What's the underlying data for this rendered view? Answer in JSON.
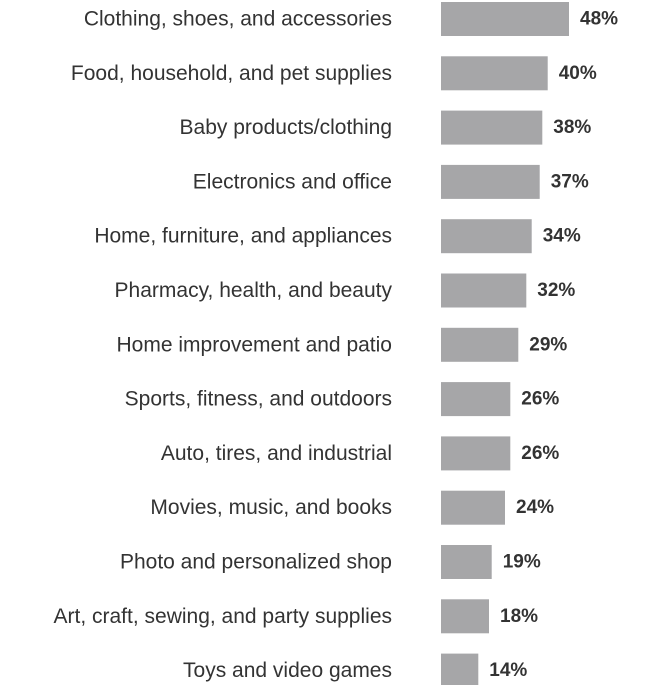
{
  "chart_data": {
    "type": "bar",
    "orientation": "horizontal",
    "title": "",
    "xlabel": "",
    "ylabel": "",
    "bar_color": "#a6a6a8",
    "label_color": "#333333",
    "value_suffix": "%",
    "grid": false,
    "legend": "none",
    "xlim": [
      0,
      50
    ],
    "categories": [
      "Clothing, shoes, and accessories",
      "Food, household, and pet supplies",
      "Baby products/clothing",
      "Electronics and office",
      "Home, furniture, and appliances",
      "Pharmacy, health, and beauty",
      "Home improvement and patio",
      "Sports, fitness, and outdoors",
      "Auto, tires, and industrial",
      "Movies, music, and books",
      "Photo and personalized shop",
      "Art, craft, sewing, and party supplies",
      "Toys and video games"
    ],
    "values": [
      48,
      40,
      38,
      37,
      34,
      32,
      29,
      26,
      26,
      24,
      19,
      18,
      14
    ],
    "value_labels": [
      "48%",
      "40%",
      "38%",
      "37%",
      "34%",
      "32%",
      "29%",
      "26%",
      "26%",
      "24%",
      "19%",
      "18%",
      "14%"
    ]
  }
}
